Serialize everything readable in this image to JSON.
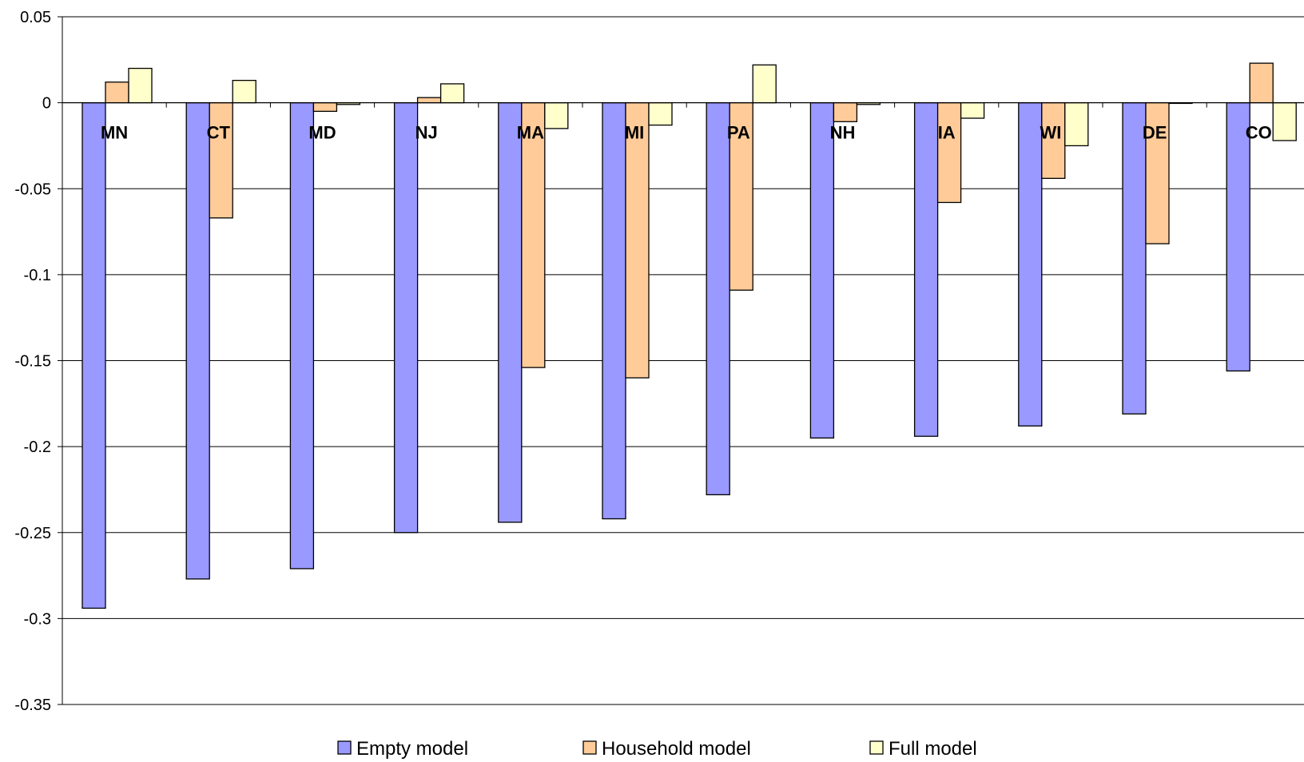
{
  "chart_data": {
    "type": "bar",
    "title": "",
    "xlabel": "",
    "ylabel": "",
    "categories": [
      "MN",
      "CT",
      "MD",
      "NJ",
      "MA",
      "MI",
      "PA",
      "NH",
      "IA",
      "WI",
      "DE",
      "CO"
    ],
    "series": [
      {
        "name": "Empty model",
        "color": "#9999FF",
        "values": [
          -0.294,
          -0.277,
          -0.271,
          -0.25,
          -0.244,
          -0.242,
          -0.228,
          -0.195,
          -0.194,
          -0.188,
          -0.181,
          -0.156
        ]
      },
      {
        "name": "Household model",
        "color": "#FFCC99",
        "values": [
          0.012,
          -0.067,
          -0.005,
          0.003,
          -0.154,
          -0.16,
          -0.109,
          -0.011,
          -0.058,
          -0.044,
          -0.082,
          0.023
        ]
      },
      {
        "name": "Full model",
        "color": "#FFFFCC",
        "values": [
          0.02,
          0.013,
          -0.001,
          0.011,
          -0.015,
          -0.013,
          0.022,
          -0.001,
          -0.009,
          -0.025,
          0.0,
          -0.022
        ]
      }
    ],
    "ylim": [
      -0.35,
      0.05
    ],
    "yticks": [
      "0.05",
      "0",
      "-0.05",
      "-0.1",
      "-0.15",
      "-0.2",
      "-0.25",
      "-0.3",
      "-0.35"
    ],
    "ytick_values": [
      0.05,
      0,
      -0.05,
      -0.1,
      -0.15,
      -0.2,
      -0.25,
      -0.3,
      -0.35
    ],
    "grid": true,
    "legend_position": "bottom"
  }
}
